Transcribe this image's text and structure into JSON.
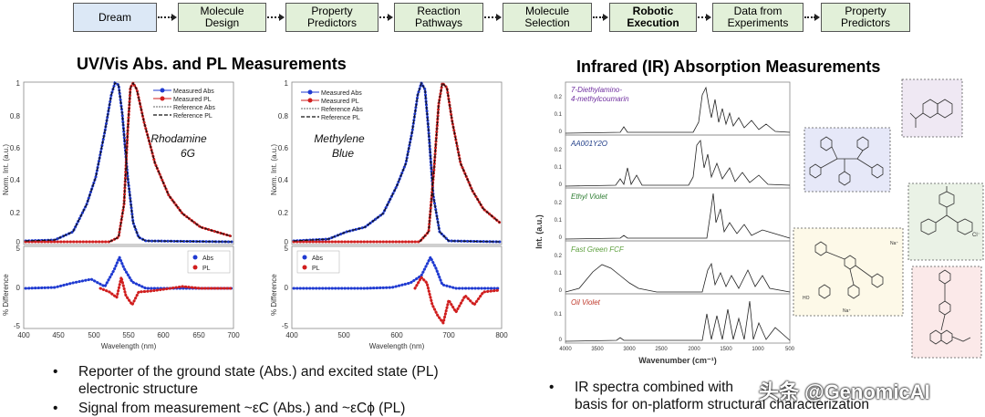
{
  "workflow": {
    "steps": [
      {
        "label": "Dream",
        "bold": false,
        "fill": "#dce8f6"
      },
      {
        "label": "Molecule Design",
        "bold": false,
        "fill": "#e2f0d9"
      },
      {
        "label": "Property Predictors",
        "bold": false,
        "fill": "#e2f0d9"
      },
      {
        "label": "Reaction Pathways",
        "bold": false,
        "fill": "#e2f0d9"
      },
      {
        "label": "Molecule Selection",
        "bold": false,
        "fill": "#e2f0d9"
      },
      {
        "label": "Robotic Execution",
        "bold": true,
        "fill": "#e2f0d9"
      },
      {
        "label": "Data from Experiments",
        "bold": false,
        "fill": "#e2f0d9"
      },
      {
        "label": "Property Predictors",
        "bold": false,
        "fill": "#e2f0d9"
      }
    ]
  },
  "uv": {
    "title": "UV/Vis Abs. and PL Measurements",
    "plot1": {
      "name_line1": "Rhodamine",
      "name_line2": "6G",
      "legend": [
        "Measured Abs",
        "Measured PL",
        "Reference Abs",
        "Reference PL"
      ],
      "ylabel": "Norm. Int. (a.u.)",
      "xlabel": "Wavelength (nm)",
      "diff_ylabel": "% Difference",
      "diff_legend": [
        "Abs",
        "PL"
      ],
      "yticks": [
        "1",
        "0.8",
        "0.6",
        "0.4",
        "0.2",
        "0"
      ],
      "diff_yticks": [
        "5",
        "0",
        "-5"
      ],
      "xticks": [
        "400",
        "450",
        "500",
        "550",
        "600",
        "650",
        "700"
      ]
    },
    "plot2": {
      "name_line1": "Methylene",
      "name_line2": "Blue",
      "legend": [
        "Measured Abs",
        "Measured PL",
        "Reference Abs",
        "Reference PL"
      ],
      "ylabel": "Norm. Int. (a.u.)",
      "xlabel": "Wavelength (nm)",
      "diff_ylabel": "% Difference",
      "diff_legend": [
        "Abs",
        "PL"
      ],
      "yticks": [
        "1",
        "0.8",
        "0.6",
        "0.4",
        "0.2",
        "0"
      ],
      "diff_yticks": [
        "5",
        "0",
        "-5"
      ],
      "xticks": [
        "400",
        "500",
        "600",
        "700",
        "800"
      ]
    },
    "bullets": [
      "Reporter of the ground state (Abs.) and excited state (PL) electronic structure",
      "Signal from measurement ~εC (Abs.) and ~εCϕ (PL)"
    ]
  },
  "ir": {
    "title": "Infrared (IR) Absorption Measurements",
    "ylabel": "Int. (a.u.)",
    "xlabel": "Wavenumber (cm⁻¹)",
    "xticks": [
      "4000",
      "3500",
      "3000",
      "2500",
      "2000",
      "1500",
      "1000",
      "500"
    ],
    "panels": [
      {
        "name": "7-Diethylamino-4-methylcoumarin",
        "color": "#7030a0",
        "ticks": [
          "0.2",
          "0.1",
          "0"
        ]
      },
      {
        "name": "AA001Y2O",
        "color": "#1f3c88",
        "ticks": [
          "0.2",
          "0.1",
          "0"
        ]
      },
      {
        "name": "Ethyl Violet",
        "color": "#2e7d32",
        "ticks": [
          "0.2",
          "0.1",
          "0"
        ]
      },
      {
        "name": "Fast Green FCF",
        "color": "#5a9e3a",
        "ticks": [
          "0.2",
          "0.1",
          "0"
        ]
      },
      {
        "name": "Oil Violet",
        "color": "#c0392b",
        "ticks": [
          "0.1",
          "0"
        ]
      }
    ],
    "bullet_line1": "IR spectra combined with",
    "bullet_line2": "basis for on-platform structural characterization",
    "watermark": "头条 @GenomicAI",
    "structure_fills": [
      "#efe8f3",
      "#e6e8f8",
      "#eaf2e6",
      "#fdf9e8",
      "#fbe9e9"
    ]
  }
}
